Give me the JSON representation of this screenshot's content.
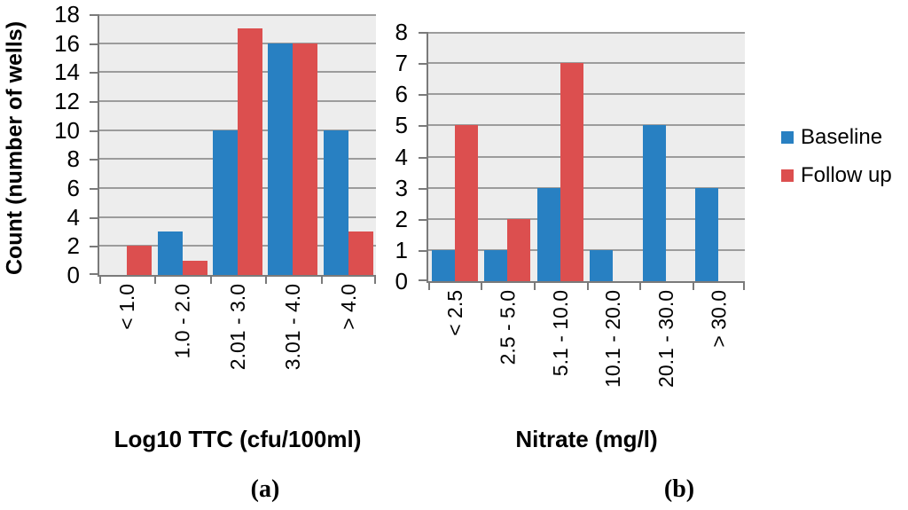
{
  "figure": {
    "background": "#FFFFFF",
    "legend_position": "right"
  },
  "style": {
    "plot_background": "#EDEDED",
    "gridline_color": "#9C9C9C",
    "axis_color": "#7A7A7A",
    "text_color": "#000000",
    "baseline_color": "#2880C2",
    "followup_color": "#DC4F4F"
  },
  "chart_data": [
    {
      "id": "a",
      "type": "bar",
      "caption": "(a)",
      "xlabel": "Log10 TTC (cfu/100ml)",
      "ylabel": "Count (number of wells)",
      "categories": [
        "< 1.0",
        "1.0 - 2.0",
        "2.01 - 3.0",
        "3.01 - 4.0",
        "> 4.0"
      ],
      "series": [
        {
          "name": "Baseline",
          "color": "#2880C2",
          "values": [
            0,
            3,
            10,
            16,
            10
          ]
        },
        {
          "name": "Follow up",
          "color": "#DC4F4F",
          "values": [
            2,
            1,
            17,
            16,
            3
          ]
        }
      ],
      "ylim": [
        0,
        18
      ],
      "ytick_step": 2,
      "grid": true,
      "legend": [
        "Baseline",
        "Follow up"
      ],
      "legend_position": "right"
    },
    {
      "id": "b",
      "type": "bar",
      "caption": "(b)",
      "xlabel": "Nitrate (mg/l)",
      "ylabel": "",
      "categories": [
        "< 2.5",
        "2.5 - 5.0",
        "5.1 - 10.0",
        "10.1 - 20.0",
        "20.1 - 30.0",
        "> 30.0"
      ],
      "series": [
        {
          "name": "Baseline",
          "color": "#2880C2",
          "values": [
            1,
            1,
            3,
            1,
            5,
            3
          ]
        },
        {
          "name": "Follow up",
          "color": "#DC4F4F",
          "values": [
            5,
            2,
            7,
            0,
            0,
            0
          ]
        }
      ],
      "ylim": [
        0,
        8
      ],
      "ytick_step": 1,
      "grid": true,
      "legend": [
        "Baseline",
        "Follow up"
      ],
      "legend_position": "right"
    }
  ]
}
